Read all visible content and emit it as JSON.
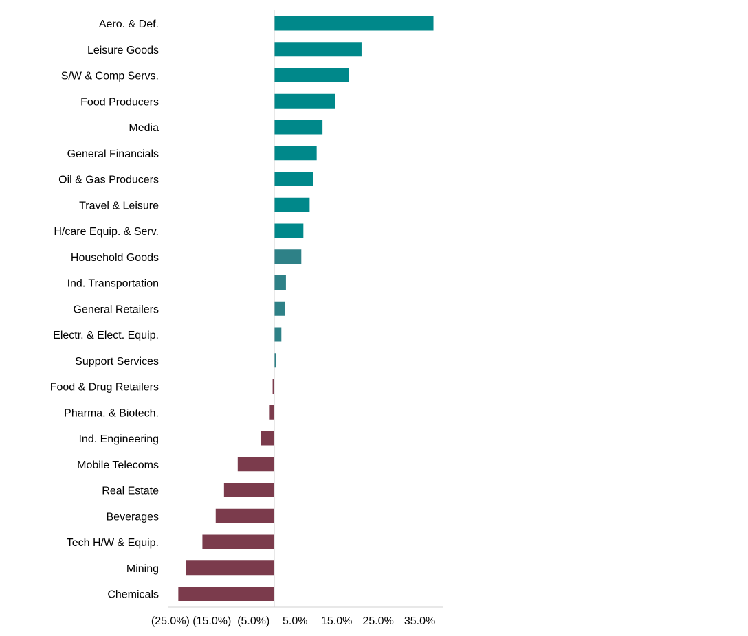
{
  "chart_data": {
    "type": "bar",
    "orientation": "horizontal",
    "title": "",
    "xlabel": "",
    "ylabel": "",
    "xlim": [
      -25,
      40
    ],
    "tick_values": [
      -25,
      -15,
      -5,
      5,
      15,
      25,
      35
    ],
    "tick_labels": [
      "(25.0%)",
      "(15.0%)",
      "(5.0%)",
      "5.0%",
      "15.0%",
      "25.0%",
      "35.0%"
    ],
    "grid": false,
    "legend": "none",
    "colors": {
      "strong_positive": "#00888a",
      "weak_positive": "#2e8187",
      "negative": "#7b3b4c",
      "axis": "#d0d0d0"
    },
    "categories": [
      "Aero. & Def.",
      "Leisure Goods",
      "S/W & Comp Servs.",
      "Food Producers",
      "Media",
      "General Financials",
      "Oil & Gas Producers",
      "Travel & Leisure",
      "H/care Equip. & Serv.",
      "Household Goods",
      "Ind. Transportation",
      "General Retailers",
      "Electr. & Elect. Equip.",
      "Support Services",
      "Food & Drug Retailers",
      "Pharma. & Biotech.",
      "Ind. Engineering",
      "Mobile Telecoms",
      "Real Estate",
      "Beverages",
      "Tech H/W & Equip.",
      "Mining",
      "Chemicals"
    ],
    "values": [
      38.3,
      21.0,
      18.0,
      14.6,
      11.6,
      10.2,
      9.4,
      8.5,
      7.0,
      6.5,
      2.8,
      2.6,
      1.7,
      0.4,
      -0.4,
      -1.1,
      -3.2,
      -8.8,
      -12.1,
      -14.1,
      -17.3,
      -21.2,
      -23.1
    ]
  }
}
